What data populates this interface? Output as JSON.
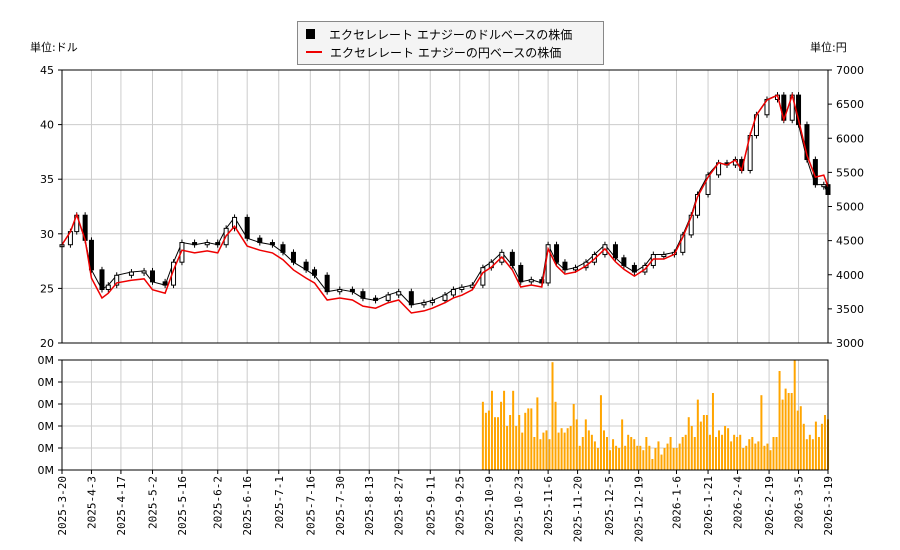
{
  "legend": {
    "usd": "エクセレレート エナジーのドルベースの株価",
    "jpy": "エクセレレート エナジーの円ベースの株価"
  },
  "units": {
    "left": "単位:ドル",
    "right": "単位:円"
  },
  "colors": {
    "usd": "#000000",
    "jpy": "#ee0000",
    "volume": "#ffa500",
    "grid": "#cccccc"
  },
  "chart_data": [
    {
      "type": "line",
      "left_axis": {
        "ylim": [
          20,
          45
        ],
        "ticks": [
          20,
          25,
          30,
          35,
          40,
          45
        ]
      },
      "right_axis": {
        "ylim": [
          3000,
          7000
        ],
        "ticks": [
          3000,
          3500,
          4000,
          4500,
          5000,
          5500,
          6000,
          6500,
          7000
        ]
      },
      "grid": true,
      "legend_position": "top-center",
      "dates": [
        "2025-03-20",
        "2025-03-24",
        "2025-03-27",
        "2025-03-31",
        "2025-04-03",
        "2025-04-08",
        "2025-04-11",
        "2025-04-15",
        "2025-04-22",
        "2025-04-28",
        "2025-05-02",
        "2025-05-08",
        "2025-05-12",
        "2025-05-16",
        "2025-05-22",
        "2025-05-28",
        "2025-06-02",
        "2025-06-06",
        "2025-06-10",
        "2025-06-16",
        "2025-06-22",
        "2025-06-28",
        "2025-07-03",
        "2025-07-08",
        "2025-07-14",
        "2025-07-18",
        "2025-07-24",
        "2025-07-30",
        "2025-08-05",
        "2025-08-10",
        "2025-08-16",
        "2025-08-22",
        "2025-08-27",
        "2025-09-02",
        "2025-09-08",
        "2025-09-12",
        "2025-09-18",
        "2025-09-22",
        "2025-09-26",
        "2025-10-01",
        "2025-10-06",
        "2025-10-10",
        "2025-10-15",
        "2025-10-20",
        "2025-10-24",
        "2025-10-29",
        "2025-11-03",
        "2025-11-06",
        "2025-11-10",
        "2025-11-14",
        "2025-11-19",
        "2025-11-24",
        "2025-11-28",
        "2025-12-03",
        "2025-12-08",
        "2025-12-12",
        "2025-12-17",
        "2025-12-22",
        "2025-12-26",
        "2025-12-31",
        "2026-01-05",
        "2026-01-09",
        "2026-01-13",
        "2026-01-16",
        "2026-01-21",
        "2026-01-26",
        "2026-01-30",
        "2026-02-03",
        "2026-02-06",
        "2026-02-10",
        "2026-02-13",
        "2026-02-18",
        "2026-02-23",
        "2026-02-26",
        "2026-03-02",
        "2026-03-05",
        "2026-03-09",
        "2026-03-13",
        "2026-03-17",
        "2026-03-19"
      ],
      "series": [
        {
          "name": "エクセレレート エナジーのドルベースの株価",
          "axis": "left",
          "values": [
            29.0,
            30.2,
            31.7,
            29.4,
            26.7,
            24.9,
            25.3,
            26.2,
            26.5,
            26.6,
            25.6,
            25.3,
            27.4,
            29.2,
            29.0,
            29.2,
            29.0,
            30.5,
            31.5,
            29.6,
            29.2,
            29.0,
            28.3,
            27.4,
            26.7,
            26.2,
            24.7,
            24.9,
            24.7,
            24.1,
            23.9,
            24.4,
            24.7,
            23.5,
            23.7,
            23.9,
            24.4,
            24.9,
            25.1,
            25.3,
            26.9,
            27.4,
            28.3,
            27.1,
            25.6,
            25.8,
            25.5,
            29.0,
            27.4,
            26.7,
            26.9,
            27.4,
            28.1,
            29.0,
            27.8,
            27.1,
            26.5,
            27.1,
            28.1,
            28.1,
            28.3,
            29.9,
            31.7,
            33.6,
            35.4,
            36.5,
            36.3,
            36.8,
            35.8,
            39.0,
            40.9,
            42.3,
            42.7,
            40.4,
            42.7,
            40.0,
            36.8,
            34.5,
            34.5,
            33.6
          ]
        },
        {
          "name": "エクセレレート エナジーの円ベースの株価",
          "axis": "right",
          "values": [
            4440,
            4630,
            4880,
            4510,
            3950,
            3660,
            3730,
            3880,
            3920,
            3940,
            3780,
            3730,
            4070,
            4360,
            4320,
            4350,
            4320,
            4570,
            4710,
            4420,
            4360,
            4320,
            4220,
            4070,
            3950,
            3880,
            3630,
            3660,
            3630,
            3540,
            3510,
            3590,
            3630,
            3440,
            3470,
            3510,
            3590,
            3660,
            3700,
            3780,
            4030,
            4110,
            4260,
            4070,
            3820,
            3850,
            3820,
            4380,
            4130,
            4010,
            4040,
            4130,
            4230,
            4380,
            4190,
            4080,
            3980,
            4080,
            4230,
            4230,
            4300,
            4550,
            4850,
            5140,
            5430,
            5640,
            5610,
            5680,
            5530,
            6050,
            6340,
            6560,
            6630,
            6270,
            6630,
            6270,
            5750,
            5430,
            5460,
            5290
          ]
        }
      ]
    },
    {
      "type": "bar",
      "ylim": [
        0,
        0.5
      ],
      "ticks": [
        0,
        0.1,
        0.2,
        0.3,
        0.4,
        0.5
      ],
      "tick_labels": [
        "0M",
        "0M",
        "0M",
        "0M",
        "0M",
        "0M"
      ],
      "x_range": [
        "2025-10-06",
        "2026-03-19"
      ],
      "values": [
        0.31,
        0.26,
        0.27,
        0.36,
        0.24,
        0.24,
        0.31,
        0.36,
        0.2,
        0.25,
        0.36,
        0.2,
        0.25,
        0.17,
        0.26,
        0.28,
        0.28,
        0.15,
        0.33,
        0.14,
        0.17,
        0.18,
        0.14,
        0.49,
        0.31,
        0.17,
        0.19,
        0.17,
        0.19,
        0.2,
        0.3,
        0.23,
        0.11,
        0.15,
        0.23,
        0.18,
        0.16,
        0.13,
        0.1,
        0.34,
        0.18,
        0.15,
        0.09,
        0.14,
        0.11,
        0.1,
        0.23,
        0.11,
        0.16,
        0.15,
        0.14,
        0.11,
        0.11,
        0.09,
        0.15,
        0.11,
        0.05,
        0.1,
        0.13,
        0.07,
        0.1,
        0.12,
        0.15,
        0.1,
        0.1,
        0.12,
        0.15,
        0.16,
        0.24,
        0.2,
        0.15,
        0.32,
        0.22,
        0.25,
        0.25,
        0.16,
        0.35,
        0.15,
        0.18,
        0.16,
        0.2,
        0.19,
        0.13,
        0.16,
        0.15,
        0.16,
        0.1,
        0.11,
        0.14,
        0.15,
        0.12,
        0.13,
        0.34,
        0.11,
        0.12,
        0.09,
        0.15,
        0.15,
        0.45,
        0.32,
        0.37,
        0.35,
        0.35,
        0.5,
        0.27,
        0.29,
        0.21,
        0.14,
        0.16,
        0.14,
        0.22,
        0.15,
        0.21,
        0.25,
        0.23
      ]
    }
  ],
  "x_axis": {
    "range": [
      "2025-03-20",
      "2026-03-19"
    ],
    "tick_labels": [
      "2025-3-20",
      "2025-4-3",
      "2025-4-17",
      "2025-5-2",
      "2025-5-16",
      "2025-6-2",
      "2025-6-16",
      "2025-7-1",
      "2025-7-16",
      "2025-7-30",
      "2025-8-13",
      "2025-8-27",
      "2025-9-11",
      "2025-9-25",
      "2025-10-9",
      "2025-10-23",
      "2025-11-6",
      "2025-11-20",
      "2025-12-5",
      "2025-12-19",
      "2026-1-6",
      "2026-1-21",
      "2026-2-4",
      "2026-2-19",
      "2026-3-5",
      "2026-3-19"
    ]
  }
}
